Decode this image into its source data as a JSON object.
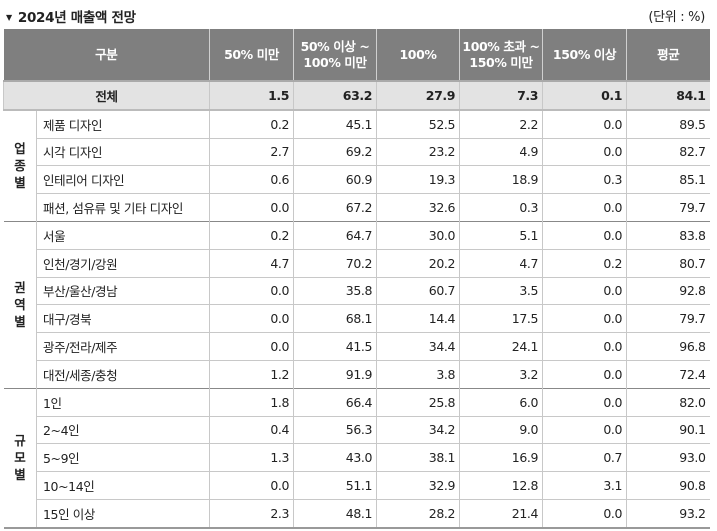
{
  "title": "2024년 매출액 전망",
  "unit": "(단위 : %)",
  "columns": [
    "구분",
    "50% 미만",
    "50% 이상 ~\n100% 미만",
    "100%",
    "100% 초과 ~\n150% 미만",
    "150% 이상",
    "평균"
  ],
  "total": {
    "label": "전체",
    "values": [
      "1.5",
      "63.2",
      "27.9",
      "7.3",
      "0.1",
      "84.1"
    ]
  },
  "groups": [
    {
      "name": "업종별",
      "rows": [
        {
          "label": "제품 디자인",
          "values": [
            "0.2",
            "45.1",
            "52.5",
            "2.2",
            "0.0",
            "89.5"
          ]
        },
        {
          "label": "시각 디자인",
          "values": [
            "2.7",
            "69.2",
            "23.2",
            "4.9",
            "0.0",
            "82.7"
          ]
        },
        {
          "label": "인테리어 디자인",
          "values": [
            "0.6",
            "60.9",
            "19.3",
            "18.9",
            "0.3",
            "85.1"
          ]
        },
        {
          "label": "패션, 섬유류 및 기타 디자인",
          "values": [
            "0.0",
            "67.2",
            "32.6",
            "0.3",
            "0.0",
            "79.7"
          ]
        }
      ]
    },
    {
      "name": "권역별",
      "rows": [
        {
          "label": "서울",
          "values": [
            "0.2",
            "64.7",
            "30.0",
            "5.1",
            "0.0",
            "83.8"
          ]
        },
        {
          "label": "인천/경기/강원",
          "values": [
            "4.7",
            "70.2",
            "20.2",
            "4.7",
            "0.2",
            "80.7"
          ]
        },
        {
          "label": "부산/울산/경남",
          "values": [
            "0.0",
            "35.8",
            "60.7",
            "3.5",
            "0.0",
            "92.8"
          ]
        },
        {
          "label": "대구/경북",
          "values": [
            "0.0",
            "68.1",
            "14.4",
            "17.5",
            "0.0",
            "79.7"
          ]
        },
        {
          "label": "광주/전라/제주",
          "values": [
            "0.0",
            "41.5",
            "34.4",
            "24.1",
            "0.0",
            "96.8"
          ]
        },
        {
          "label": "대전/세종/충청",
          "values": [
            "1.2",
            "91.9",
            "3.8",
            "3.2",
            "0.0",
            "72.4"
          ]
        }
      ]
    },
    {
      "name": "규모별",
      "rows": [
        {
          "label": "1인",
          "values": [
            "1.8",
            "66.4",
            "25.8",
            "6.0",
            "0.0",
            "82.0"
          ]
        },
        {
          "label": "2~4인",
          "values": [
            "0.4",
            "56.3",
            "34.2",
            "9.0",
            "0.0",
            "90.1"
          ]
        },
        {
          "label": "5~9인",
          "values": [
            "1.3",
            "43.0",
            "38.1",
            "16.9",
            "0.7",
            "93.0"
          ]
        },
        {
          "label": "10~14인",
          "values": [
            "0.0",
            "51.1",
            "32.9",
            "12.8",
            "3.1",
            "90.8"
          ]
        },
        {
          "label": "15인 이상",
          "values": [
            "2.3",
            "48.1",
            "28.2",
            "21.4",
            "0.0",
            "93.2"
          ]
        }
      ]
    }
  ]
}
